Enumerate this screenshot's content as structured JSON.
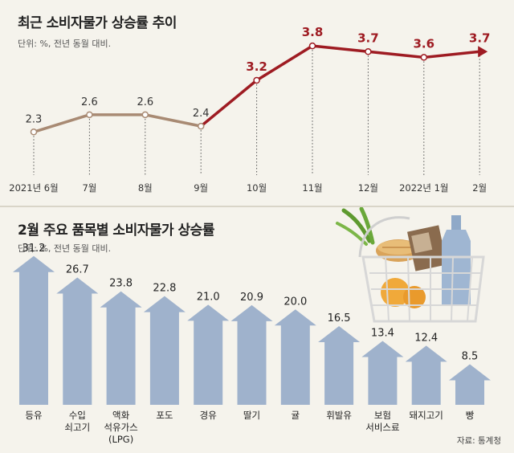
{
  "line_chart": {
    "title": "최근 소비자물가 상승률 추이",
    "subtitle": "단위: %, 전년 동월 대비.",
    "colors": {
      "early": "#a88a73",
      "late": "#9e1b22",
      "point_fill": "#ffffff"
    }
  },
  "bar_chart": {
    "title": "2월 주요 품목별 소비자물가 상승률",
    "subtitle": "단위: %, 전년 동월 대비.",
    "colors": {
      "arrow": "#9fb2cc",
      "label": "#222222"
    }
  },
  "source": "자료: 통계청",
  "icons": {
    "basket": "grocery-basket-icon"
  },
  "chart_data": [
    {
      "type": "line",
      "categories": [
        "2021년 6월",
        "7월",
        "8월",
        "9월",
        "10월",
        "11월",
        "12월",
        "2022년 1월",
        "2월"
      ],
      "values": [
        2.3,
        2.6,
        2.6,
        2.4,
        3.2,
        3.8,
        3.7,
        3.6,
        3.7
      ],
      "value_labels": [
        "2.3",
        "2.6",
        "2.6",
        "2.4",
        "3.2",
        "3.8",
        "3.7",
        "3.6",
        "3.7"
      ],
      "ylim": [
        1.8,
        3.9
      ],
      "highlight_from_index": 4
    },
    {
      "type": "bar",
      "categories": [
        "등유",
        "수입\n쇠고기",
        "액화\n석유가스\n(LPG)",
        "포도",
        "경유",
        "딸기",
        "귤",
        "휘발유",
        "보험\n서비스료",
        "돼지고기",
        "빵"
      ],
      "values": [
        31.2,
        26.7,
        23.8,
        22.8,
        21.0,
        20.9,
        20.0,
        16.5,
        13.4,
        12.4,
        8.5
      ],
      "value_labels": [
        "31.2",
        "26.7",
        "23.8",
        "22.8",
        "21.0",
        "20.9",
        "20.0",
        "16.5",
        "13.4",
        "12.4",
        "8.5"
      ],
      "ylim": [
        0,
        32
      ]
    }
  ]
}
